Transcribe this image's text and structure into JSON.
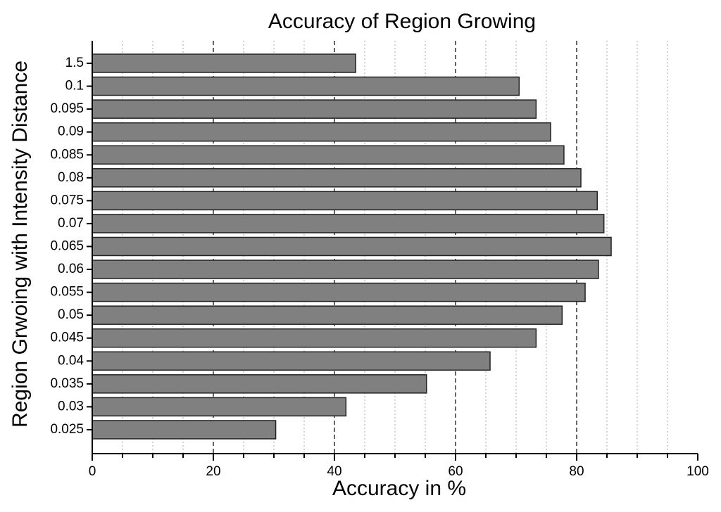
{
  "chart_data": {
    "type": "barh",
    "title": "Accuracy of Region Growing",
    "x_label": "Accuracy in %",
    "y_label": "Region Grwoing with Intensity Distance",
    "categories": [
      "1.5",
      "0.1",
      "0.095",
      "0.09",
      "0.085",
      "0.08",
      "0.075",
      "0.07",
      "0.065",
      "0.06",
      "0.055",
      "0.05",
      "0.045",
      "0.04",
      "0.035",
      "0.03",
      "0.025"
    ],
    "values": [
      43.5,
      70.5,
      73.3,
      75.7,
      77.9,
      80.7,
      83.4,
      84.5,
      85.7,
      83.6,
      81.4,
      77.6,
      73.3,
      65.7,
      55.2,
      41.9,
      30.3
    ],
    "color": "#808080",
    "xlim": [
      0,
      100
    ],
    "xticks": [
      0,
      20,
      40,
      60,
      80,
      100
    ],
    "xminor_ticks": [
      5,
      10,
      15,
      25,
      30,
      35,
      45,
      50,
      55,
      65,
      70,
      75,
      85,
      90,
      95
    ],
    "grid": true
  }
}
